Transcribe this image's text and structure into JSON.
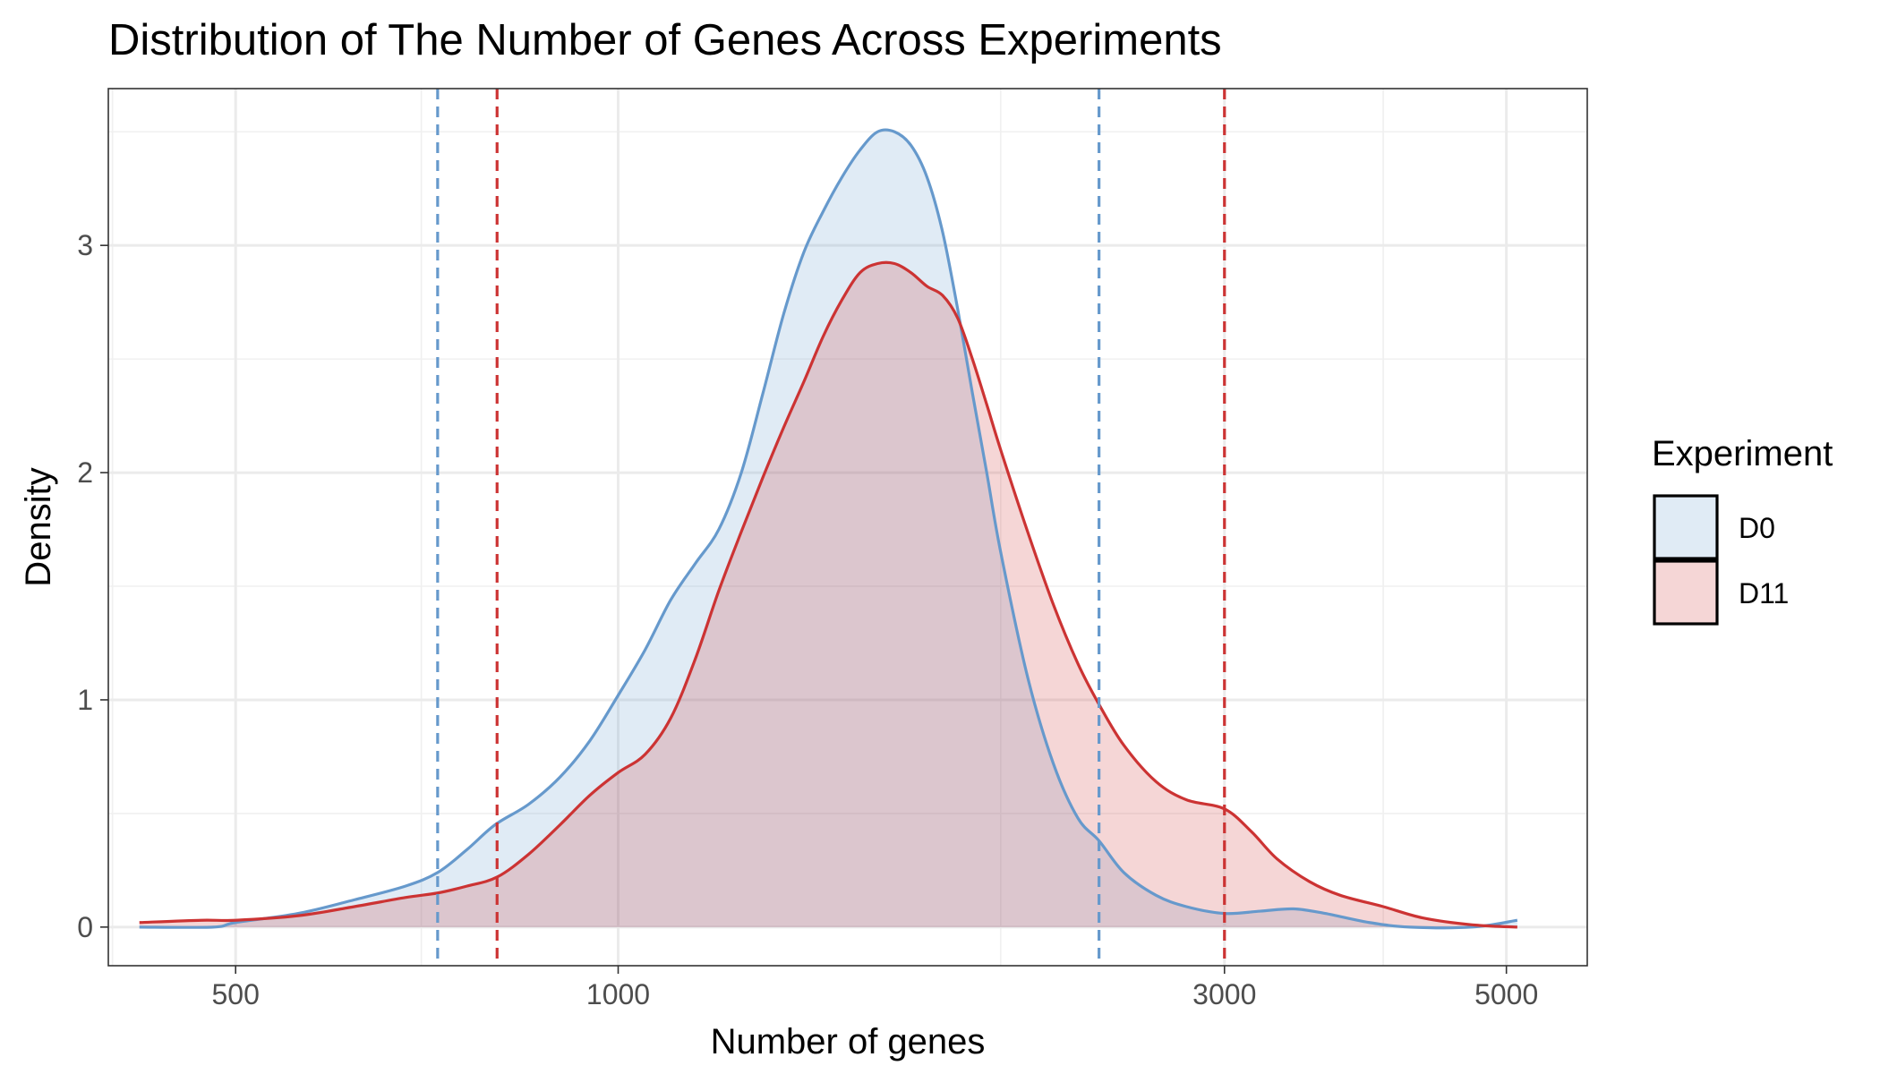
{
  "chart_data": {
    "type": "area",
    "title": "Distribution of The Number of Genes Across Experiments",
    "xlabel": "Number of genes",
    "ylabel": "Density",
    "x_scale": "log10",
    "xlim": [
      397,
      5789
    ],
    "ylim": [
      -0.17,
      3.69
    ],
    "x_ticks_major": [
      500,
      1000,
      3000,
      5000
    ],
    "x_ticks_minor": [
      400,
      700,
      2000,
      4000
    ],
    "y_ticks_major": [
      0,
      1,
      2,
      3
    ],
    "y_ticks_minor": [
      0.5,
      1.5,
      2.5,
      3.5
    ],
    "grid": true,
    "legend": {
      "title": "Experiment",
      "position": "right"
    },
    "series": [
      {
        "name": "D0",
        "color": "#6699CC",
        "fill": "#DCE6F2",
        "vlines": [
          721,
          2390
        ],
        "points": [
          [
            420,
            0.0
          ],
          [
            480,
            0.0
          ],
          [
            500,
            0.02
          ],
          [
            560,
            0.06
          ],
          [
            620,
            0.12
          ],
          [
            680,
            0.18
          ],
          [
            721,
            0.24
          ],
          [
            760,
            0.34
          ],
          [
            800,
            0.45
          ],
          [
            850,
            0.54
          ],
          [
            900,
            0.66
          ],
          [
            950,
            0.82
          ],
          [
            1000,
            1.02
          ],
          [
            1050,
            1.22
          ],
          [
            1100,
            1.44
          ],
          [
            1150,
            1.6
          ],
          [
            1200,
            1.75
          ],
          [
            1250,
            2.0
          ],
          [
            1300,
            2.35
          ],
          [
            1350,
            2.7
          ],
          [
            1400,
            2.97
          ],
          [
            1450,
            3.15
          ],
          [
            1500,
            3.3
          ],
          [
            1550,
            3.42
          ],
          [
            1600,
            3.5
          ],
          [
            1650,
            3.5
          ],
          [
            1700,
            3.44
          ],
          [
            1750,
            3.3
          ],
          [
            1800,
            3.06
          ],
          [
            1850,
            2.72
          ],
          [
            1900,
            2.35
          ],
          [
            1950,
            2.0
          ],
          [
            2000,
            1.65
          ],
          [
            2100,
            1.1
          ],
          [
            2200,
            0.72
          ],
          [
            2300,
            0.48
          ],
          [
            2390,
            0.38
          ],
          [
            2500,
            0.24
          ],
          [
            2650,
            0.14
          ],
          [
            2800,
            0.09
          ],
          [
            3000,
            0.06
          ],
          [
            3200,
            0.07
          ],
          [
            3400,
            0.08
          ],
          [
            3600,
            0.06
          ],
          [
            3900,
            0.02
          ],
          [
            4200,
            0.0
          ],
          [
            4700,
            0.0
          ],
          [
            5100,
            0.03
          ]
        ]
      },
      {
        "name": "D11",
        "color": "#CC3333",
        "fill": "#F2D5D7",
        "vlines": [
          803,
          3000
        ],
        "points": [
          [
            420,
            0.02
          ],
          [
            470,
            0.03
          ],
          [
            500,
            0.03
          ],
          [
            560,
            0.05
          ],
          [
            620,
            0.09
          ],
          [
            680,
            0.13
          ],
          [
            721,
            0.15
          ],
          [
            760,
            0.18
          ],
          [
            803,
            0.22
          ],
          [
            850,
            0.32
          ],
          [
            900,
            0.45
          ],
          [
            950,
            0.58
          ],
          [
            1000,
            0.68
          ],
          [
            1050,
            0.76
          ],
          [
            1100,
            0.92
          ],
          [
            1150,
            1.18
          ],
          [
            1200,
            1.48
          ],
          [
            1250,
            1.74
          ],
          [
            1300,
            1.98
          ],
          [
            1350,
            2.2
          ],
          [
            1400,
            2.4
          ],
          [
            1450,
            2.6
          ],
          [
            1500,
            2.76
          ],
          [
            1550,
            2.88
          ],
          [
            1600,
            2.92
          ],
          [
            1650,
            2.92
          ],
          [
            1700,
            2.88
          ],
          [
            1750,
            2.82
          ],
          [
            1800,
            2.78
          ],
          [
            1850,
            2.68
          ],
          [
            1900,
            2.5
          ],
          [
            1950,
            2.3
          ],
          [
            2000,
            2.1
          ],
          [
            2100,
            1.74
          ],
          [
            2200,
            1.42
          ],
          [
            2300,
            1.16
          ],
          [
            2390,
            0.98
          ],
          [
            2500,
            0.8
          ],
          [
            2650,
            0.64
          ],
          [
            2800,
            0.56
          ],
          [
            3000,
            0.52
          ],
          [
            3150,
            0.42
          ],
          [
            3300,
            0.3
          ],
          [
            3500,
            0.2
          ],
          [
            3700,
            0.14
          ],
          [
            4000,
            0.09
          ],
          [
            4300,
            0.04
          ],
          [
            4700,
            0.01
          ],
          [
            5100,
            0.0
          ]
        ]
      }
    ]
  }
}
